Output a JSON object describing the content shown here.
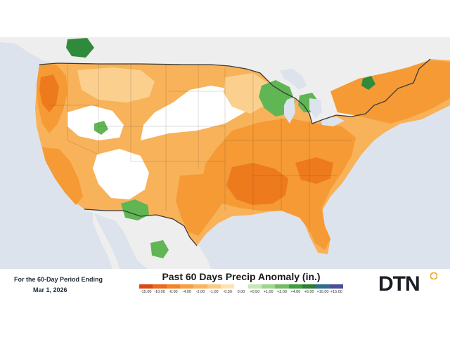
{
  "footer": {
    "period_label": "For the 60-Day Period Ending",
    "period_date": "Mar 1, 2026",
    "title": "Past 60 Days Precip Anomaly (in.)"
  },
  "legend": {
    "ticks": [
      "-15.00",
      "-10.00",
      "-6.00",
      "-4.00",
      "-2.00",
      "-1.00",
      "-0.50",
      "0.00",
      "+0.50",
      "+1.00",
      "+2.00",
      "+4.00",
      "+6.00",
      "+10.00",
      "+15.00"
    ],
    "colors": [
      "#d84a12",
      "#ea6a1c",
      "#f28423",
      "#f7a03d",
      "#f9b65e",
      "#fbcb83",
      "#fde2b4",
      "#ffffff",
      "#c6e8b8",
      "#9fd68b",
      "#6fbf5e",
      "#3f9e3c",
      "#2a7d33",
      "#2f6e8a",
      "#4a4d9a"
    ]
  },
  "logo": {
    "text": "DTN",
    "colors": [
      "#f7a21b",
      "#8ec641",
      "#1fa2dd",
      "#e23b2e"
    ]
  },
  "map_colors": {
    "ocean": "#dde3ec",
    "foreign_land": "#eeeeee",
    "deep_dry": "#ee7a1e",
    "dry": "#f59a34",
    "light_dry": "#f8b259",
    "slight_dry": "#fbd08e",
    "normal": "#ffffff",
    "wet": "#5fb653",
    "very_wet": "#2f8b3a",
    "border": "#3a3a3a"
  }
}
